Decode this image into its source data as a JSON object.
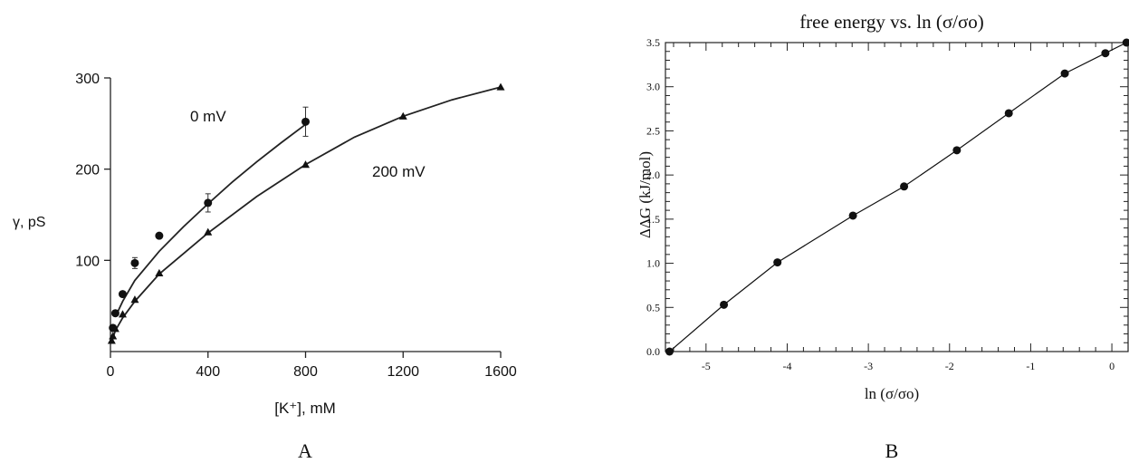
{
  "chart_data": [
    {
      "type": "scatter",
      "panel_label": "A",
      "xlabel": "[K⁺], mM",
      "ylabel": "γ, pS",
      "xlim": [
        0,
        1600
      ],
      "ylim": [
        0,
        300
      ],
      "xticks": [
        "0",
        "400",
        "800",
        "1200",
        "1600"
      ],
      "yticks": [
        "100",
        "200",
        "300"
      ],
      "xtick_values": [
        0,
        400,
        800,
        1200,
        1600
      ],
      "ytick_values": [
        100,
        200,
        300
      ],
      "grid": false,
      "series": [
        {
          "name": "0 mV",
          "marker": "circle",
          "x": [
            10,
            20,
            50,
            100,
            200,
            400,
            800
          ],
          "y": [
            26,
            42,
            63,
            97,
            127,
            163,
            252
          ],
          "err": [
            0,
            0,
            0,
            6,
            0,
            10,
            16
          ],
          "fit_x": [
            20,
            50,
            100,
            200,
            300,
            400,
            500,
            600,
            700,
            800
          ],
          "fit_y": [
            38,
            55,
            78,
            110,
            137,
            162,
            186,
            208,
            229,
            249
          ]
        },
        {
          "name": "200 mV",
          "marker": "triangle",
          "x": [
            5,
            10,
            20,
            50,
            100,
            200,
            400,
            800,
            1200,
            1600
          ],
          "y": [
            12,
            17,
            25,
            41,
            57,
            86,
            131,
            205,
            258,
            290
          ],
          "err": [
            0,
            0,
            0,
            0,
            0,
            0,
            0,
            0,
            0,
            0
          ],
          "fit_x": [
            5,
            20,
            50,
            100,
            200,
            400,
            600,
            800,
            1000,
            1200,
            1400,
            1600
          ],
          "fit_y": [
            10,
            23,
            37,
            55,
            85,
            130,
            170,
            205,
            235,
            258,
            276,
            290
          ]
        }
      ]
    },
    {
      "type": "line",
      "panel_label": "B",
      "title": "free energy vs. ln (σ/σo)",
      "xlabel": "ln (σ/σo)",
      "ylabel": "ΔΔG (kJ/mol)",
      "xlim": [
        -5.5,
        0.2
      ],
      "ylim": [
        0.0,
        3.5
      ],
      "xticks": [
        "-5",
        "-4",
        "-3",
        "-2",
        "-1",
        "0"
      ],
      "xtick_values": [
        -5,
        -4,
        -3,
        -2,
        -1,
        0
      ],
      "yticks": [
        "0.0",
        "0.5",
        "1.0",
        "1.5",
        "2.0",
        "2.5",
        "3.0",
        "3.5"
      ],
      "ytick_values": [
        0.0,
        0.5,
        1.0,
        1.5,
        2.0,
        2.5,
        3.0,
        3.5
      ],
      "grid": false,
      "series": [
        {
          "marker": "circle",
          "x": [
            -5.45,
            -4.78,
            -4.12,
            -3.19,
            -2.56,
            -1.91,
            -1.27,
            -0.58,
            -0.08,
            0.18
          ],
          "y": [
            0.0,
            0.53,
            1.01,
            1.54,
            1.87,
            2.28,
            2.7,
            3.15,
            3.38,
            3.5
          ]
        }
      ]
    }
  ]
}
